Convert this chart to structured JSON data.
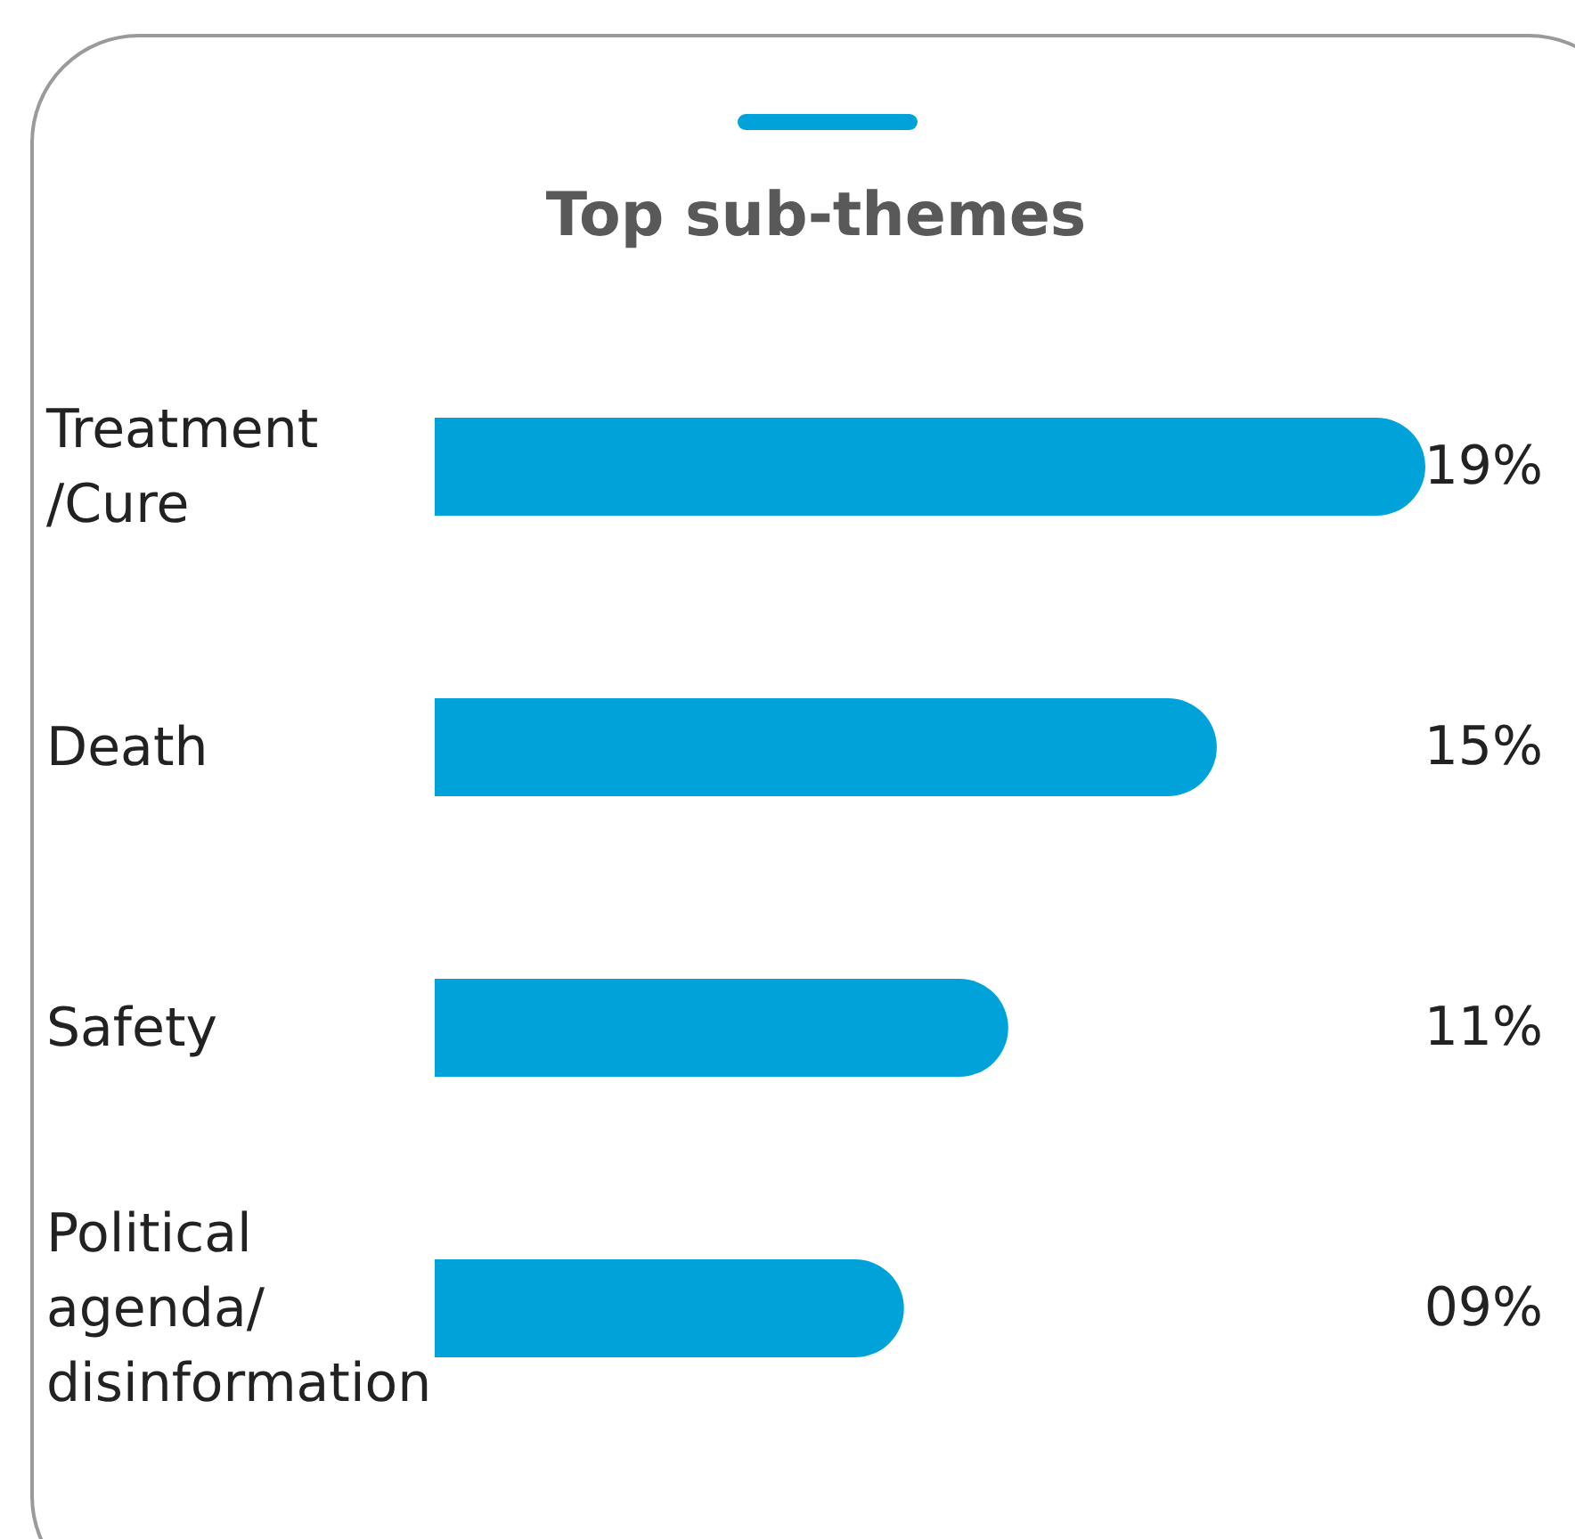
{
  "chart_data": {
    "type": "bar",
    "orientation": "horizontal",
    "title": "Top sub-themes",
    "categories": [
      "Treatment /Cure",
      "Death",
      "Safety",
      "Political agenda/ disinformation"
    ],
    "values": [
      19,
      15,
      11,
      9
    ],
    "value_labels": [
      "19%",
      "15%",
      "11%",
      "09%"
    ],
    "color": "#00a3d9"
  }
}
